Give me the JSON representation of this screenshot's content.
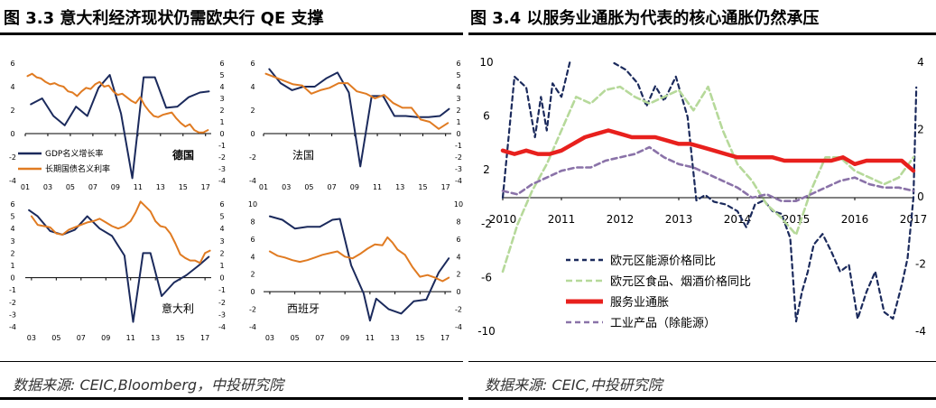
{
  "left_figure": {
    "title": "图 3.3 意大利经济现状仍需欧央行 QE 支撑",
    "source": "数据来源: CEIC,Bloomberg，中投研究院"
  },
  "right_figure": {
    "title": "图 3.4  以服务业通胀为代表的核心通胀仍然承压",
    "source": "数据来源: CEIC,中投研究院"
  },
  "colors": {
    "navy": "#1b2a5c",
    "orange": "#e07b22",
    "red": "#e8201d",
    "light_green": "#b6d99a",
    "purple": "#8a72a8"
  },
  "chart_data": [
    {
      "type": "line",
      "panel": "germany",
      "label": "德国",
      "x_ticks": [
        "01",
        "03",
        "05",
        "07",
        "09",
        "11",
        "13",
        "15",
        "17"
      ],
      "xlim": [
        2001,
        2017.5
      ],
      "ylim_left": [
        -4,
        6
      ],
      "ylim_right": [
        -4,
        6
      ],
      "left_ticks": [
        "6",
        "4",
        "2",
        "0",
        "-2",
        "-4"
      ],
      "right_ticks": [
        "6",
        "5",
        "4",
        "3",
        "2",
        "1",
        "0",
        "-1",
        "-2",
        "-3",
        "-4"
      ],
      "legend": [
        "GDP名义增长率",
        "长期国债名义利率"
      ],
      "series": [
        {
          "name": "GDP名义增长率",
          "axis": "left",
          "x": [
            2001.5,
            2002.5,
            2003.5,
            2004.5,
            2005.5,
            2006.5,
            2007.5,
            2008.5,
            2009.5,
            2010.5,
            2011.5,
            2012.5,
            2013.5,
            2014.5,
            2015.5,
            2016.5,
            2017.3
          ],
          "y": [
            2.5,
            3.0,
            1.5,
            0.7,
            2.3,
            1.5,
            3.9,
            5.0,
            1.7,
            -3.8,
            4.8,
            4.8,
            2.2,
            2.3,
            3.1,
            3.5,
            3.6
          ]
        },
        {
          "name": "长期国债名义利率",
          "axis": "right",
          "x": [
            2001.2,
            2001.6,
            2002.0,
            2002.4,
            2002.8,
            2003.2,
            2003.6,
            2004.0,
            2004.4,
            2004.8,
            2005.2,
            2005.6,
            2006.0,
            2006.4,
            2006.8,
            2007.2,
            2007.6,
            2008.0,
            2008.4,
            2008.8,
            2009.2,
            2009.6,
            2010.0,
            2010.4,
            2010.8,
            2011.2,
            2011.6,
            2012.0,
            2012.4,
            2012.8,
            2013.2,
            2013.6,
            2014.0,
            2014.4,
            2014.8,
            2015.2,
            2015.6,
            2016.0,
            2016.4,
            2016.8,
            2017.2
          ],
          "y": [
            4.9,
            5.1,
            4.8,
            4.7,
            4.4,
            4.2,
            4.3,
            4.1,
            4.0,
            3.6,
            3.5,
            3.2,
            3.6,
            3.9,
            3.8,
            4.2,
            4.4,
            4.0,
            4.1,
            3.6,
            3.3,
            3.4,
            3.1,
            2.8,
            2.6,
            3.1,
            2.4,
            1.9,
            1.5,
            1.4,
            1.6,
            1.7,
            1.8,
            1.3,
            0.9,
            0.6,
            0.8,
            0.3,
            0.1,
            0.1,
            0.3
          ]
        }
      ]
    },
    {
      "type": "line",
      "panel": "france",
      "label": "法国",
      "x_ticks": [
        "01",
        "03",
        "05",
        "07",
        "09",
        "11",
        "13",
        "15",
        "17"
      ],
      "xlim": [
        2001,
        2017.5
      ],
      "ylim_left": [
        -4,
        6
      ],
      "ylim_right": [
        -4,
        6
      ],
      "left_ticks": [
        "6",
        "4",
        "2",
        "0",
        "-2",
        "-4"
      ],
      "right_ticks": [
        "6",
        "5",
        "4",
        "3",
        "2",
        "1",
        "0",
        "-1",
        "-2",
        "-3",
        "-4"
      ],
      "series": [
        {
          "name": "GDP名义增长率",
          "axis": "left",
          "x": [
            2001.5,
            2002.5,
            2003.5,
            2004.5,
            2005.5,
            2006.5,
            2007.5,
            2008.5,
            2009.5,
            2010.5,
            2011.5,
            2012.5,
            2013.5,
            2014.5,
            2015.5,
            2016.5,
            2017.3
          ],
          "y": [
            5.5,
            4.3,
            3.7,
            4.0,
            4.0,
            4.7,
            5.2,
            3.5,
            -2.8,
            3.2,
            3.2,
            1.5,
            1.5,
            1.4,
            1.4,
            1.5,
            2.1
          ]
        },
        {
          "name": "长期国债名义利率",
          "axis": "right",
          "x": [
            2001.2,
            2002.0,
            2002.8,
            2003.6,
            2004.4,
            2005.2,
            2006.0,
            2006.8,
            2007.6,
            2008.4,
            2009.2,
            2010.0,
            2010.8,
            2011.6,
            2012.4,
            2013.2,
            2014.0,
            2014.8,
            2015.6,
            2016.4,
            2017.2
          ],
          "y": [
            5.1,
            4.8,
            4.5,
            4.2,
            4.1,
            3.4,
            3.7,
            3.9,
            4.3,
            4.3,
            3.6,
            3.4,
            3.0,
            3.3,
            2.6,
            2.2,
            2.2,
            1.2,
            1.0,
            0.4,
            0.9
          ]
        }
      ]
    },
    {
      "type": "line",
      "panel": "italy",
      "label": "意大利",
      "x_ticks": [
        "03",
        "05",
        "07",
        "09",
        "11",
        "13",
        "15",
        "17"
      ],
      "xlim": [
        2002.5,
        2017.5
      ],
      "ylim_left": [
        -4,
        6
      ],
      "ylim_right": [
        -4,
        6
      ],
      "left_ticks": [
        "6",
        "5",
        "4",
        "3",
        "2",
        "1",
        "0",
        "-1",
        "-2",
        "-3",
        "-4"
      ],
      "right_ticks": [
        "6",
        "5",
        "4",
        "3",
        "2",
        "1",
        "0",
        "-1",
        "-2",
        "-3",
        "-4"
      ],
      "series": [
        {
          "name": "GDP名义增长率",
          "axis": "left",
          "x": [
            2002.8,
            2003.5,
            2004.5,
            2005.5,
            2006.5,
            2007.5,
            2008.5,
            2009.5,
            2010.5,
            2011.2,
            2012.0,
            2012.6,
            2013.5,
            2014.5,
            2015.5,
            2016.5,
            2017.3
          ],
          "y": [
            5.5,
            5.0,
            3.8,
            3.5,
            3.9,
            5.0,
            4.0,
            3.4,
            1.8,
            -3.6,
            2.0,
            2.0,
            -1.5,
            -0.4,
            0.2,
            1.0,
            1.7
          ]
        },
        {
          "name": "长期国债名义利率",
          "axis": "right",
          "x": [
            2003.0,
            2003.5,
            2004.0,
            2004.5,
            2005.0,
            2005.5,
            2006.0,
            2006.5,
            2007.0,
            2007.5,
            2008.0,
            2008.5,
            2009.0,
            2009.5,
            2010.0,
            2010.5,
            2011.0,
            2011.4,
            2011.8,
            2012.2,
            2012.6,
            2013.0,
            2013.4,
            2013.8,
            2014.2,
            2014.6,
            2015.0,
            2015.4,
            2015.8,
            2016.2,
            2016.6,
            2017.0,
            2017.4
          ],
          "y": [
            5.0,
            4.3,
            4.2,
            4.1,
            3.6,
            3.5,
            3.9,
            4.1,
            4.3,
            4.5,
            4.6,
            4.8,
            4.5,
            4.2,
            4.0,
            4.2,
            4.6,
            5.3,
            6.2,
            5.8,
            5.4,
            4.6,
            4.2,
            4.1,
            3.6,
            2.8,
            1.9,
            1.6,
            1.4,
            1.4,
            1.2,
            2.0,
            2.2
          ]
        }
      ]
    },
    {
      "type": "line",
      "panel": "spain",
      "label": "西班牙",
      "x_ticks": [
        "03",
        "05",
        "07",
        "09",
        "11",
        "13",
        "15",
        "17"
      ],
      "xlim": [
        2002.5,
        2017.5
      ],
      "ylim_left": [
        -4,
        10
      ],
      "ylim_right": [
        -4,
        10
      ],
      "left_ticks": [
        "10",
        "8",
        "6",
        "4",
        "2",
        "0",
        "-2",
        "-4"
      ],
      "right_ticks": [
        "10",
        "8",
        "6",
        "4",
        "2",
        "0",
        "-2",
        "-4"
      ],
      "series": [
        {
          "name": "GDP名义增长率",
          "axis": "left",
          "x": [
            2003.0,
            2004.0,
            2005.0,
            2006.0,
            2007.0,
            2008.0,
            2008.6,
            2009.5,
            2010.5,
            2011.0,
            2011.5,
            2012.5,
            2013.5,
            2014.5,
            2015.5,
            2016.5,
            2017.3
          ],
          "y": [
            8.6,
            8.2,
            7.2,
            7.4,
            7.4,
            8.2,
            8.3,
            3.0,
            -0.2,
            -3.3,
            -0.8,
            -2.0,
            -2.5,
            -1.1,
            -0.9,
            2.2,
            3.8
          ]
        },
        {
          "name": "长期国债名义利率",
          "axis": "right",
          "x": [
            2003.0,
            2003.6,
            2004.2,
            2004.8,
            2005.4,
            2006.0,
            2006.6,
            2007.2,
            2007.8,
            2008.4,
            2009.0,
            2009.6,
            2010.2,
            2010.8,
            2011.4,
            2012.0,
            2012.4,
            2012.8,
            2013.2,
            2013.8,
            2014.4,
            2015.0,
            2015.6,
            2016.2,
            2016.8,
            2017.3
          ],
          "y": [
            4.6,
            4.1,
            3.9,
            3.6,
            3.4,
            3.6,
            3.9,
            4.2,
            4.4,
            4.6,
            4.0,
            3.8,
            4.3,
            4.9,
            5.4,
            5.3,
            6.2,
            5.6,
            4.8,
            4.2,
            2.8,
            1.7,
            1.9,
            1.6,
            1.2,
            1.6
          ]
        }
      ]
    },
    {
      "type": "line",
      "panel": "euro_inflation",
      "x_ticks": [
        "2010",
        "2011",
        "2012",
        "2013",
        "2014",
        "2015",
        "2016",
        "2017"
      ],
      "xlim": [
        2010,
        2017
      ],
      "ylim_left": [
        -10,
        10
      ],
      "ylim_right": [
        -4,
        4
      ],
      "left_ticks": [
        "10",
        "6",
        "2",
        "-2",
        "-6",
        "-10"
      ],
      "right_ticks": [
        "4",
        "2",
        "0",
        "-2",
        "-4"
      ],
      "legend": [
        "欧元区能源价格同比",
        "欧元区食品、烟酒价格同比",
        "服务业通胀",
        "工业产品（除能源）"
      ],
      "series": [
        {
          "name": "欧元区能源价格同比",
          "axis": "left",
          "x": [
            2010.0,
            2010.2,
            2010.4,
            2010.55,
            2010.65,
            2010.75,
            2010.85,
            2011.0,
            2011.15
          ],
          "y": [
            0.0,
            9.0,
            8.2,
            4.5,
            7.5,
            5.0,
            8.5,
            7.5,
            10.2
          ]
        },
        {
          "name": "欧元区能源价格同比",
          "axis": "left",
          "x": [
            2011.9,
            2012.1,
            2012.3,
            2012.45,
            2012.6,
            2012.75,
            2012.95,
            2013.15,
            2013.3,
            2013.45,
            2013.6,
            2013.8,
            2014.0,
            2014.15,
            2014.3,
            2014.45,
            2014.6,
            2014.75,
            2014.9,
            2015.0,
            2015.1,
            2015.2,
            2015.3,
            2015.45,
            2015.6,
            2015.75,
            2015.9,
            2016.05,
            2016.2,
            2016.35,
            2016.5,
            2016.65,
            2016.8,
            2016.9,
            2017.0,
            2017.05
          ],
          "y": [
            10.0,
            9.5,
            8.5,
            6.8,
            8.3,
            7.2,
            9.0,
            6.0,
            -0.2,
            0.2,
            -0.3,
            -0.5,
            -1.0,
            -2.2,
            -0.5,
            -0.2,
            -1.0,
            -1.2,
            -3.0,
            -9.2,
            -7.0,
            -5.5,
            -3.5,
            -2.7,
            -4.0,
            -5.5,
            -5.0,
            -9.0,
            -7.0,
            -5.5,
            -8.5,
            -9.0,
            -6.5,
            -4.5,
            0.0,
            8.2
          ]
        },
        {
          "name": "欧元区食品、烟酒价格同比",
          "axis": "right",
          "x": [
            2010.0,
            2010.25,
            2010.5,
            2010.75,
            2011.0,
            2011.25,
            2011.5,
            2011.75,
            2012.0,
            2012.25,
            2012.5,
            2012.75,
            2013.0,
            2013.25,
            2013.5,
            2013.75,
            2014.0,
            2014.25,
            2014.5,
            2014.75,
            2015.0,
            2015.25,
            2015.5,
            2015.75,
            2016.0,
            2016.25,
            2016.5,
            2016.75,
            2017.0
          ],
          "y": [
            -2.2,
            -0.8,
            0.2,
            1.0,
            2.0,
            3.0,
            2.8,
            3.2,
            3.3,
            3.0,
            2.8,
            3.0,
            3.2,
            2.6,
            3.3,
            2.0,
            1.0,
            0.5,
            -0.2,
            -0.6,
            -1.1,
            0.2,
            1.2,
            1.2,
            0.8,
            0.6,
            0.4,
            0.6,
            1.2
          ]
        },
        {
          "name": "服务业通胀",
          "axis": "right",
          "x": [
            2010.0,
            2010.2,
            2010.4,
            2010.6,
            2010.8,
            2011.0,
            2011.2,
            2011.4,
            2011.6,
            2011.8,
            2012.0,
            2012.2,
            2012.4,
            2012.6,
            2012.8,
            2013.0,
            2013.2,
            2013.4,
            2013.6,
            2013.8,
            2014.0,
            2014.2,
            2014.4,
            2014.6,
            2014.8,
            2015.0,
            2015.2,
            2015.4,
            2015.6,
            2015.8,
            2016.0,
            2016.2,
            2016.4,
            2016.6,
            2016.8,
            2017.0
          ],
          "y": [
            1.4,
            1.3,
            1.4,
            1.3,
            1.3,
            1.4,
            1.6,
            1.8,
            1.9,
            2.0,
            1.9,
            1.8,
            1.8,
            1.8,
            1.7,
            1.6,
            1.6,
            1.5,
            1.4,
            1.3,
            1.2,
            1.2,
            1.2,
            1.2,
            1.1,
            1.1,
            1.1,
            1.1,
            1.1,
            1.2,
            1.0,
            1.1,
            1.1,
            1.1,
            1.1,
            0.8
          ]
        },
        {
          "name": "工业产品（除能源）",
          "axis": "right",
          "x": [
            2010.0,
            2010.25,
            2010.5,
            2010.75,
            2011.0,
            2011.25,
            2011.5,
            2011.75,
            2012.0,
            2012.25,
            2012.5,
            2012.75,
            2013.0,
            2013.25,
            2013.5,
            2013.75,
            2014.0,
            2014.25,
            2014.5,
            2014.75,
            2015.0,
            2015.25,
            2015.5,
            2015.75,
            2016.0,
            2016.25,
            2016.5,
            2016.75,
            2017.0
          ],
          "y": [
            0.2,
            0.1,
            0.4,
            0.6,
            0.8,
            0.9,
            0.9,
            1.1,
            1.2,
            1.3,
            1.5,
            1.2,
            1.0,
            0.9,
            0.7,
            0.5,
            0.3,
            0.0,
            0.1,
            -0.1,
            -0.1,
            0.1,
            0.3,
            0.5,
            0.6,
            0.4,
            0.3,
            0.3,
            0.2
          ]
        }
      ]
    }
  ]
}
